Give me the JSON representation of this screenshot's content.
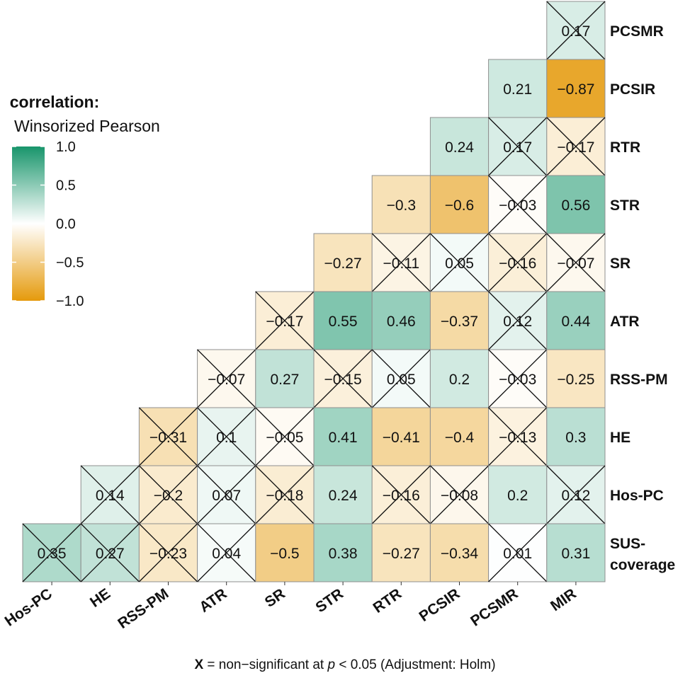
{
  "chart_data": {
    "type": "heatmap",
    "legend": {
      "title": "correlation:",
      "subtitle": "Winsorized Pearson",
      "ticks": [
        "1.0",
        "0.5",
        "0.0",
        "−0.5",
        "−1.0"
      ],
      "tick_values": [
        1.0,
        0.5,
        0.0,
        -0.5,
        -1.0
      ],
      "colors": {
        "high": "#18956b",
        "mid": "#ffffff",
        "low": "#e59a0c"
      }
    },
    "columns": [
      "Hos-PC",
      "HE",
      "RSS-PM",
      "ATR",
      "SR",
      "STR",
      "RTR",
      "PCSIR",
      "PCSMR",
      "MIR"
    ],
    "rows": [
      {
        "label": "PCSMR",
        "cells": [
          {
            "c": 9,
            "v": 0.17,
            "t": "0.17",
            "ns": true
          }
        ]
      },
      {
        "label": "PCSIR",
        "cells": [
          {
            "c": 8,
            "v": 0.21,
            "t": "0.21",
            "ns": false
          },
          {
            "c": 9,
            "v": -0.87,
            "t": "−0.87",
            "ns": false
          }
        ]
      },
      {
        "label": "RTR",
        "cells": [
          {
            "c": 7,
            "v": 0.24,
            "t": "0.24",
            "ns": false
          },
          {
            "c": 8,
            "v": 0.17,
            "t": "0.17",
            "ns": true
          },
          {
            "c": 9,
            "v": -0.17,
            "t": "−0.17",
            "ns": true
          }
        ]
      },
      {
        "label": "STR",
        "cells": [
          {
            "c": 6,
            "v": -0.3,
            "t": "−0.3",
            "ns": false
          },
          {
            "c": 7,
            "v": -0.6,
            "t": "−0.6",
            "ns": false
          },
          {
            "c": 8,
            "v": -0.03,
            "t": "−0.03",
            "ns": true
          },
          {
            "c": 9,
            "v": 0.56,
            "t": "0.56",
            "ns": false
          }
        ]
      },
      {
        "label": "SR",
        "cells": [
          {
            "c": 5,
            "v": -0.27,
            "t": "−0.27",
            "ns": false
          },
          {
            "c": 6,
            "v": -0.11,
            "t": "−0.11",
            "ns": true
          },
          {
            "c": 7,
            "v": 0.05,
            "t": "0.05",
            "ns": true
          },
          {
            "c": 8,
            "v": -0.16,
            "t": "−0.16",
            "ns": true
          },
          {
            "c": 9,
            "v": -0.07,
            "t": "−0.07",
            "ns": true
          }
        ]
      },
      {
        "label": "ATR",
        "cells": [
          {
            "c": 4,
            "v": -0.17,
            "t": "−0.17",
            "ns": true
          },
          {
            "c": 5,
            "v": 0.55,
            "t": "0.55",
            "ns": false
          },
          {
            "c": 6,
            "v": 0.46,
            "t": "0.46",
            "ns": false
          },
          {
            "c": 7,
            "v": -0.37,
            "t": "−0.37",
            "ns": false
          },
          {
            "c": 8,
            "v": 0.12,
            "t": "0.12",
            "ns": true
          },
          {
            "c": 9,
            "v": 0.44,
            "t": "0.44",
            "ns": false
          }
        ]
      },
      {
        "label": "RSS-PM",
        "cells": [
          {
            "c": 3,
            "v": -0.07,
            "t": "−0.07",
            "ns": true
          },
          {
            "c": 4,
            "v": 0.27,
            "t": "0.27",
            "ns": false
          },
          {
            "c": 5,
            "v": -0.15,
            "t": "−0.15",
            "ns": true
          },
          {
            "c": 6,
            "v": 0.05,
            "t": "0.05",
            "ns": true
          },
          {
            "c": 7,
            "v": 0.2,
            "t": "0.2",
            "ns": false
          },
          {
            "c": 8,
            "v": -0.03,
            "t": "−0.03",
            "ns": true
          },
          {
            "c": 9,
            "v": -0.25,
            "t": "−0.25",
            "ns": false
          }
        ]
      },
      {
        "label": "HE",
        "cells": [
          {
            "c": 2,
            "v": -0.31,
            "t": "−0.31",
            "ns": true
          },
          {
            "c": 3,
            "v": 0.1,
            "t": "0.1",
            "ns": true
          },
          {
            "c": 4,
            "v": -0.05,
            "t": "−0.05",
            "ns": true
          },
          {
            "c": 5,
            "v": 0.41,
            "t": "0.41",
            "ns": false
          },
          {
            "c": 6,
            "v": -0.41,
            "t": "−0.41",
            "ns": false
          },
          {
            "c": 7,
            "v": -0.4,
            "t": "−0.4",
            "ns": false
          },
          {
            "c": 8,
            "v": -0.13,
            "t": "−0.13",
            "ns": true
          },
          {
            "c": 9,
            "v": 0.3,
            "t": "0.3",
            "ns": false
          }
        ]
      },
      {
        "label": "Hos-PC",
        "cells": [
          {
            "c": 1,
            "v": 0.14,
            "t": "0.14",
            "ns": true
          },
          {
            "c": 2,
            "v": -0.2,
            "t": "−0.2",
            "ns": true
          },
          {
            "c": 3,
            "v": 0.07,
            "t": "0.07",
            "ns": true
          },
          {
            "c": 4,
            "v": -0.18,
            "t": "−0.18",
            "ns": true
          },
          {
            "c": 5,
            "v": 0.24,
            "t": "0.24",
            "ns": false
          },
          {
            "c": 6,
            "v": -0.16,
            "t": "−0.16",
            "ns": true
          },
          {
            "c": 7,
            "v": -0.08,
            "t": "−0.08",
            "ns": true
          },
          {
            "c": 8,
            "v": 0.2,
            "t": "0.2",
            "ns": false
          },
          {
            "c": 9,
            "v": 0.12,
            "t": "0.12",
            "ns": true
          }
        ]
      },
      {
        "label": "SUS-coverage",
        "label_lines": [
          "SUS-",
          "coverage"
        ],
        "cells": [
          {
            "c": 0,
            "v": 0.35,
            "t": "0.35",
            "ns": true
          },
          {
            "c": 1,
            "v": 0.27,
            "t": "0.27",
            "ns": true
          },
          {
            "c": 2,
            "v": -0.23,
            "t": "−0.23",
            "ns": true
          },
          {
            "c": 3,
            "v": 0.04,
            "t": "0.04",
            "ns": true
          },
          {
            "c": 4,
            "v": -0.5,
            "t": "−0.5",
            "ns": false
          },
          {
            "c": 5,
            "v": 0.38,
            "t": "0.38",
            "ns": false
          },
          {
            "c": 6,
            "v": -0.27,
            "t": "−0.27",
            "ns": false
          },
          {
            "c": 7,
            "v": -0.34,
            "t": "−0.34",
            "ns": false
          },
          {
            "c": 8,
            "v": 0.01,
            "t": "0.01",
            "ns": true
          },
          {
            "c": 9,
            "v": 0.31,
            "t": "0.31",
            "ns": false
          }
        ]
      }
    ]
  },
  "footnote": {
    "marker": "X",
    "text_before": " = non−significant at ",
    "p_symbol": "p",
    "text_after": " < 0.05 (Adjustment: Holm)"
  }
}
